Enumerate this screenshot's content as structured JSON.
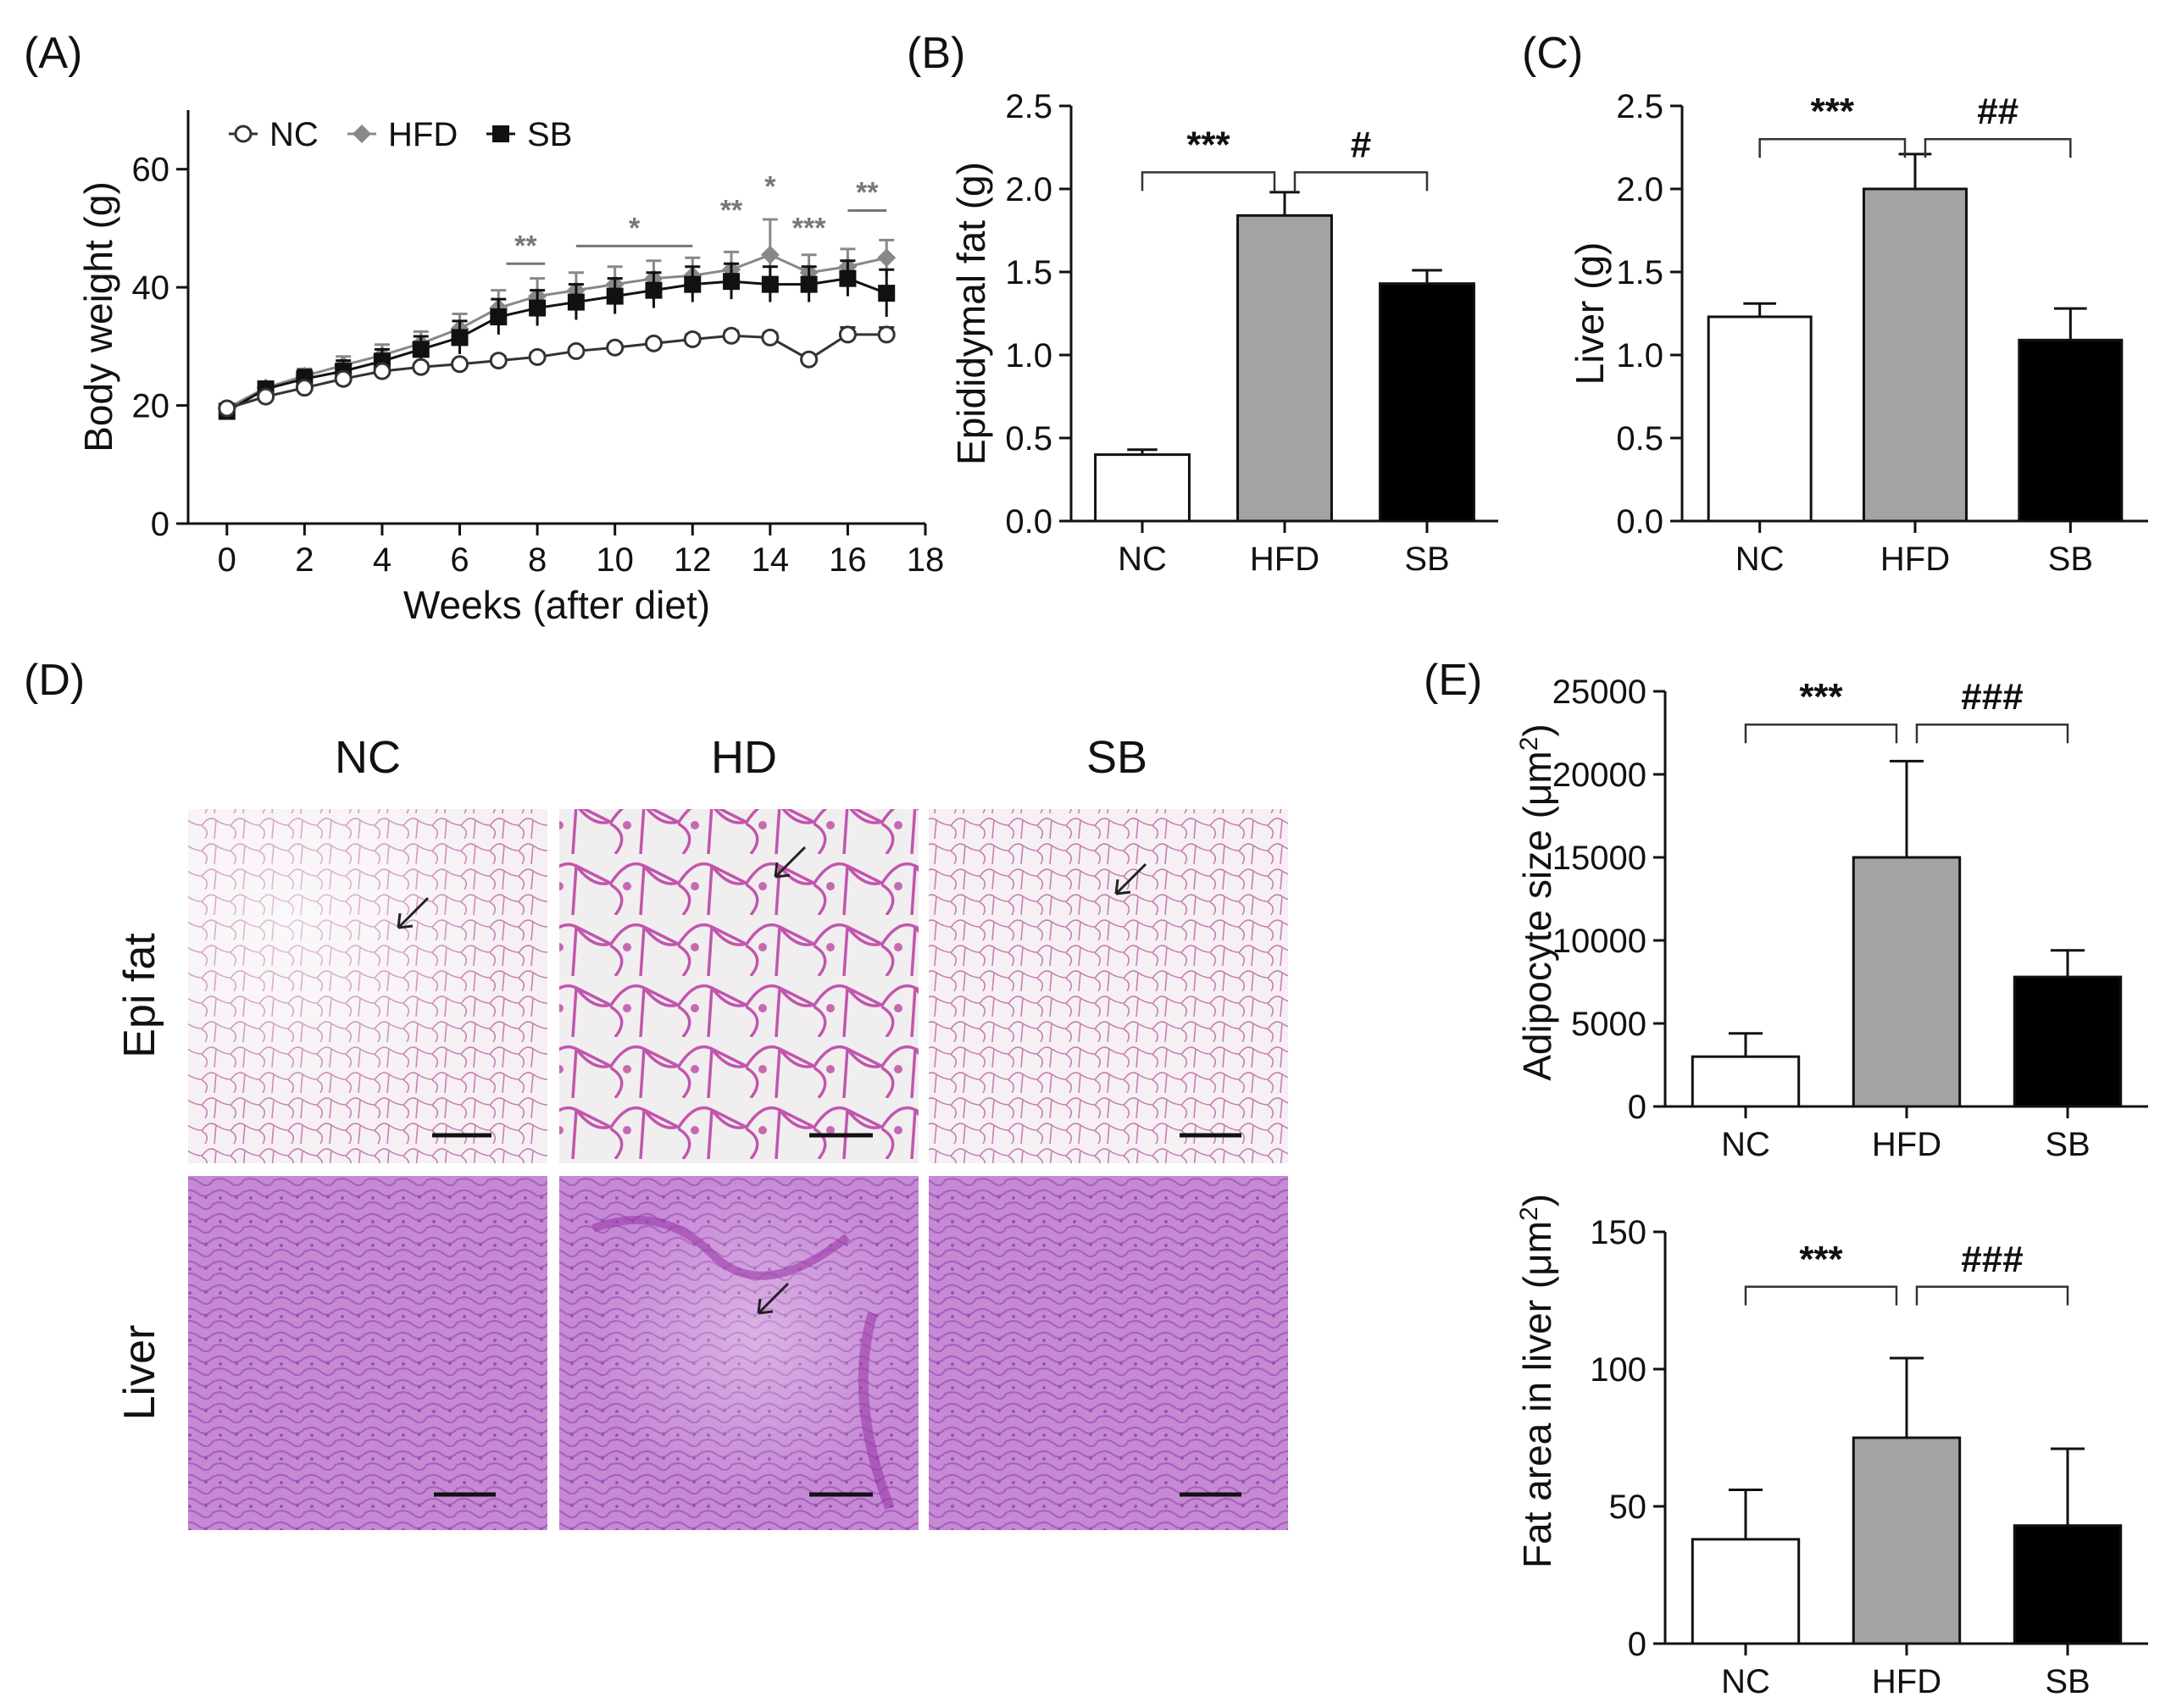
{
  "panels": {
    "A": {
      "label": "(A)",
      "chart_data": {
        "type": "line",
        "xlabel": "Weeks (after diet)",
        "ylabel": "Body weight (g)",
        "xlim": [
          -1,
          18
        ],
        "ylim": [
          0,
          70
        ],
        "xticks": [
          "0",
          "2",
          "4",
          "6",
          "8",
          "10",
          "12",
          "14",
          "16",
          "18"
        ],
        "yticks": [
          "0",
          "20",
          "40",
          "60"
        ],
        "legend": "top-left",
        "x": [
          0,
          1,
          2,
          3,
          4,
          5,
          6,
          7,
          8,
          9,
          10,
          11,
          12,
          13,
          14,
          15,
          16,
          17
        ],
        "series": [
          {
            "name": "NC",
            "marker": "open-circle",
            "color": "#333333",
            "values": [
              19.5,
              21.5,
              23,
              24.5,
              25.8,
              26.5,
              27,
              27.6,
              28.2,
              29.2,
              29.8,
              30.5,
              31.2,
              31.8,
              31.5,
              27.8,
              32,
              32
            ],
            "errors": [
              0.5,
              0.5,
              0.6,
              0.6,
              0.7,
              0.7,
              0.7,
              0.7,
              0.7,
              0.7,
              0.7,
              0.7,
              0.8,
              0.8,
              0.8,
              0.8,
              1.2,
              1.2
            ]
          },
          {
            "name": "HFD",
            "marker": "diamond",
            "color": "#888888",
            "values": [
              19.5,
              23,
              25,
              26.8,
              28.5,
              30.5,
              33,
              36.5,
              38.5,
              39.5,
              40.5,
              41.5,
              42,
              43,
              45.5,
              42.5,
              43.5,
              45
            ],
            "errors": [
              0.8,
              1,
              1.2,
              1.5,
              1.8,
              2,
              2.5,
              3,
              3,
              3,
              3,
              3,
              3,
              3,
              6,
              3,
              3,
              3
            ]
          },
          {
            "name": "SB",
            "marker": "filled-square",
            "color": "#111111",
            "values": [
              19,
              22.8,
              24.5,
              25.8,
              27.5,
              29.5,
              31.5,
              35,
              36.5,
              37.5,
              38.5,
              39.5,
              40.5,
              41,
              40.5,
              40.5,
              41.5,
              39
            ],
            "errors": [
              0.8,
              1,
              1.5,
              1.8,
              2,
              2.2,
              2.8,
              3,
              3,
              3,
              3,
              3,
              3,
              3,
              3,
              3,
              3,
              4
            ]
          }
        ],
        "significance": [
          {
            "text": "**",
            "x0": 7.2,
            "x1": 8.2,
            "y": 44
          },
          {
            "text": "*",
            "x0": 9,
            "x1": 12,
            "y": 47
          },
          {
            "text": "**",
            "x0": 13,
            "x1": 13,
            "y": 50
          },
          {
            "text": "*",
            "x0": 14,
            "x1": 14,
            "y": 54
          },
          {
            "text": "***",
            "x0": 15,
            "x1": 15,
            "y": 47
          },
          {
            "text": "**",
            "x0": 16,
            "x1": 17,
            "y": 53
          }
        ]
      }
    },
    "B": {
      "label": "(B)",
      "chart_data": {
        "type": "bar",
        "categories": [
          "NC",
          "HFD",
          "SB"
        ],
        "values": [
          0.4,
          1.84,
          1.43
        ],
        "errors": [
          0.03,
          0.14,
          0.08
        ],
        "colors": [
          "#ffffff",
          "#a3a3a3",
          "#000000"
        ],
        "ylabel": "Epididymal fat (g)",
        "ylim": [
          0,
          2.5
        ],
        "yticks": [
          "0.0",
          "0.5",
          "1.0",
          "1.5",
          "2.0",
          "2.5"
        ],
        "brackets": [
          {
            "from": 0,
            "to": 1,
            "text": "***",
            "y": 2.1
          },
          {
            "from": 1,
            "to": 2,
            "text": "#",
            "y": 2.1
          }
        ]
      }
    },
    "C": {
      "label": "(C)",
      "chart_data": {
        "type": "bar",
        "categories": [
          "NC",
          "HFD",
          "SB"
        ],
        "values": [
          1.23,
          2.0,
          1.09
        ],
        "errors": [
          0.08,
          0.21,
          0.19
        ],
        "colors": [
          "#ffffff",
          "#a3a3a3",
          "#000000"
        ],
        "ylabel": "Liver (g)",
        "ylim": [
          0,
          2.5
        ],
        "yticks": [
          "0.0",
          "0.5",
          "1.0",
          "1.5",
          "2.0",
          "2.5"
        ],
        "brackets": [
          {
            "from": 0,
            "to": 1,
            "text": "***",
            "y": 2.3
          },
          {
            "from": 1,
            "to": 2,
            "text": "##",
            "y": 2.3
          }
        ]
      }
    },
    "D": {
      "label": "(D)",
      "columns": [
        "NC",
        "HD",
        "SB"
      ],
      "rows": [
        "Epi fat",
        "Liver"
      ]
    },
    "E": {
      "label": "(E)",
      "charts": [
        {
          "type": "bar",
          "categories": [
            "NC",
            "HFD",
            "SB"
          ],
          "values": [
            3000,
            15000,
            7800
          ],
          "errors": [
            1400,
            5800,
            1600
          ],
          "colors": [
            "#ffffff",
            "#a3a3a3",
            "#000000"
          ],
          "ylabel_main": "Adipocyte size (",
          "ylabel_unit": "μm",
          "ylabel_sup": "2",
          "ylabel_end": ")",
          "ylim": [
            0,
            25000
          ],
          "yticks": [
            "0",
            "5000",
            "10000",
            "15000",
            "20000",
            "25000"
          ],
          "brackets": [
            {
              "from": 0,
              "to": 1,
              "text": "***",
              "y": 23000
            },
            {
              "from": 1,
              "to": 2,
              "text": "###",
              "y": 23000
            }
          ]
        },
        {
          "type": "bar",
          "categories": [
            "NC",
            "HFD",
            "SB"
          ],
          "values": [
            38,
            75,
            43
          ],
          "errors": [
            18,
            29,
            28
          ],
          "colors": [
            "#ffffff",
            "#a3a3a3",
            "#000000"
          ],
          "ylabel_main": "Fat area in liver (",
          "ylabel_unit": "μm",
          "ylabel_sup": "2",
          "ylabel_end": ")",
          "ylim": [
            0,
            150
          ],
          "yticks": [
            "0",
            "50",
            "100",
            "150"
          ],
          "brackets": [
            {
              "from": 0,
              "to": 1,
              "text": "***",
              "y": 130
            },
            {
              "from": 1,
              "to": 2,
              "text": "###",
              "y": 130
            }
          ]
        }
      ]
    }
  }
}
